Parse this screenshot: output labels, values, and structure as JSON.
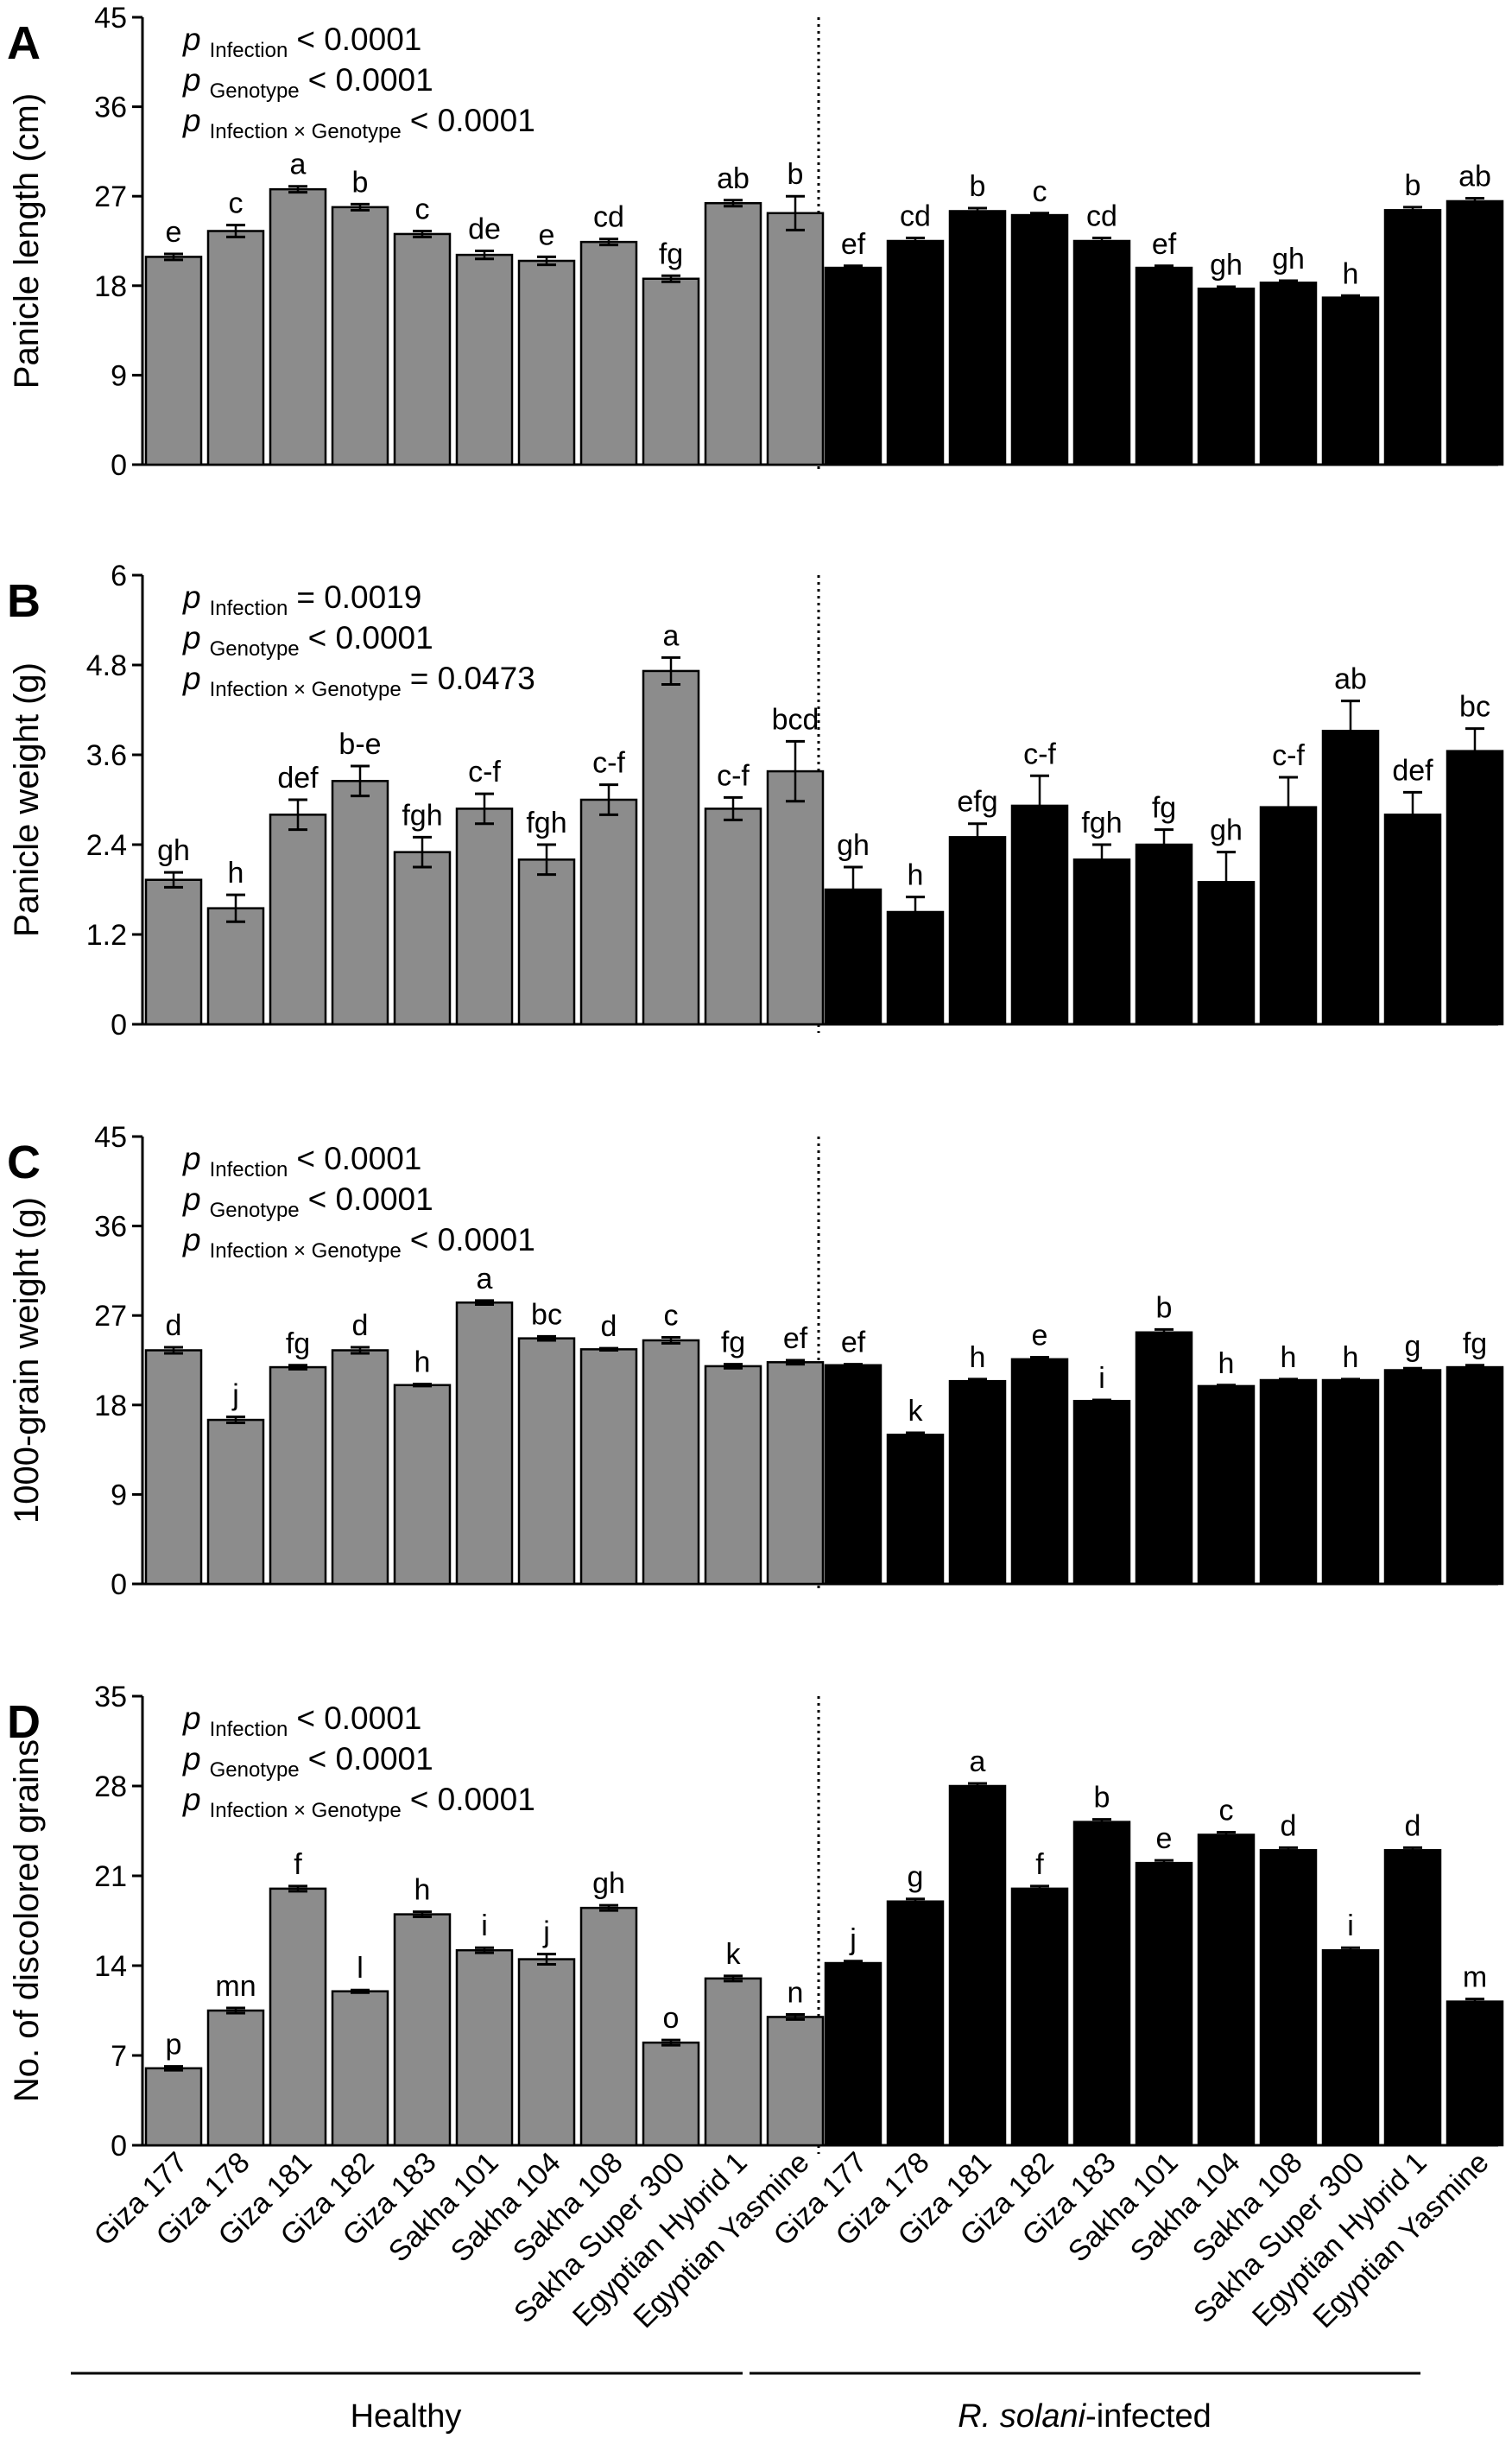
{
  "figure": {
    "categories": [
      "Giza 177",
      "Giza 178",
      "Giza 181",
      "Giza 182",
      "Giza 183",
      "Sakha 101",
      "Sakha 104",
      "Sakha 108",
      "Sakha Super 300",
      "Egyptian Hybrid 1",
      "Egyptian Yasmine"
    ],
    "group_labels": {
      "healthy": "Healthy",
      "infected_italic": "R. solani",
      "infected_suffix": "-infected"
    },
    "colors": {
      "healthy": "#8c8c8c",
      "infected": "#000000"
    }
  },
  "chart_data": [
    {
      "type": "bar",
      "panel": "A",
      "ylabel": "Panicle length (cm)",
      "ylim": [
        0,
        45
      ],
      "yticks": [
        0,
        9,
        18,
        27,
        36,
        45
      ],
      "stats": [
        {
          "p": "p",
          "sub": "Infection",
          "tail": "< 0.0001"
        },
        {
          "p": "p",
          "sub": "Genotype",
          "tail": "< 0.0001"
        },
        {
          "p": "p",
          "sub": "Infection × Genotype",
          "tail": "< 0.0001"
        }
      ],
      "series": [
        {
          "name": "Healthy",
          "values": [
            20.9,
            23.5,
            27.7,
            25.9,
            23.2,
            21.1,
            20.5,
            22.4,
            18.7,
            26.3,
            25.3
          ],
          "errors": [
            0.3,
            0.6,
            0.3,
            0.3,
            0.3,
            0.4,
            0.4,
            0.3,
            0.3,
            0.3,
            1.7
          ],
          "letters": [
            "e",
            "c",
            "a",
            "b",
            "c",
            "de",
            "e",
            "cd",
            "fg",
            "ab",
            "b"
          ]
        },
        {
          "name": "R. solani-infected",
          "values": [
            19.8,
            22.5,
            25.5,
            25.1,
            22.5,
            19.8,
            17.7,
            18.3,
            16.8,
            25.6,
            26.5
          ],
          "errors": [
            0.2,
            0.3,
            0.3,
            0.2,
            0.3,
            0.2,
            0.2,
            0.2,
            0.2,
            0.3,
            0.3
          ],
          "letters": [
            "ef",
            "cd",
            "b",
            "c",
            "cd",
            "ef",
            "gh",
            "gh",
            "h",
            "b",
            "ab"
          ]
        }
      ]
    },
    {
      "type": "bar",
      "panel": "B",
      "ylabel": "Panicle weight (g)",
      "ylim": [
        0,
        6
      ],
      "yticks": [
        0,
        1.2,
        2.4,
        3.6,
        4.8,
        6
      ],
      "stats": [
        {
          "p": "p",
          "sub": "Infection",
          "tail": "= 0.0019"
        },
        {
          "p": "p",
          "sub": "Genotype",
          "tail": "< 0.0001"
        },
        {
          "p": "p",
          "sub": "Infection × Genotype",
          "tail": "= 0.0473"
        }
      ],
      "series": [
        {
          "name": "Healthy",
          "values": [
            1.93,
            1.55,
            2.8,
            3.25,
            2.3,
            2.88,
            2.2,
            3.0,
            4.72,
            2.88,
            3.38
          ],
          "errors": [
            0.1,
            0.18,
            0.2,
            0.2,
            0.2,
            0.2,
            0.2,
            0.2,
            0.18,
            0.15,
            0.4
          ],
          "letters": [
            "gh",
            "h",
            "def",
            "b-e",
            "fgh",
            "c-f",
            "fgh",
            "c-f",
            "a",
            "c-f",
            "bcd"
          ]
        },
        {
          "name": "R. solani-infected",
          "values": [
            1.8,
            1.5,
            2.5,
            2.92,
            2.2,
            2.4,
            1.9,
            2.9,
            3.92,
            2.8,
            3.65
          ],
          "errors": [
            0.3,
            0.2,
            0.18,
            0.4,
            0.2,
            0.2,
            0.4,
            0.4,
            0.4,
            0.3,
            0.3
          ],
          "letters": [
            "gh",
            "h",
            "efg",
            "c-f",
            "fgh",
            "fg",
            "gh",
            "c-f",
            "ab",
            "def",
            "bc"
          ]
        }
      ]
    },
    {
      "type": "bar",
      "panel": "C",
      "ylabel": "1000-grain weight (g)",
      "ylim": [
        0,
        45
      ],
      "yticks": [
        0,
        9,
        18,
        27,
        36,
        45
      ],
      "stats": [
        {
          "p": "p",
          "sub": "Infection",
          "tail": "< 0.0001"
        },
        {
          "p": "p",
          "sub": "Genotype",
          "tail": "< 0.0001"
        },
        {
          "p": "p",
          "sub": "Infection × Genotype",
          "tail": "< 0.0001"
        }
      ],
      "series": [
        {
          "name": "Healthy",
          "values": [
            23.5,
            16.5,
            21.8,
            23.5,
            20.0,
            28.3,
            24.7,
            23.6,
            24.5,
            21.9,
            22.3
          ],
          "errors": [
            0.3,
            0.3,
            0.2,
            0.3,
            0.1,
            0.2,
            0.2,
            0.1,
            0.3,
            0.2,
            0.2
          ],
          "letters": [
            "d",
            "j",
            "fg",
            "d",
            "h",
            "a",
            "bc",
            "d",
            "c",
            "fg",
            "ef"
          ]
        },
        {
          "name": "R. solani-infected",
          "values": [
            22.0,
            15.0,
            20.4,
            22.6,
            18.4,
            25.3,
            19.9,
            20.5,
            20.5,
            21.5,
            21.8
          ],
          "errors": [
            0.1,
            0.2,
            0.2,
            0.2,
            0.1,
            0.3,
            0.1,
            0.1,
            0.1,
            0.2,
            0.2
          ],
          "letters": [
            "ef",
            "k",
            "h",
            "e",
            "i",
            "b",
            "h",
            "h",
            "h",
            "g",
            "fg"
          ]
        }
      ]
    },
    {
      "type": "bar",
      "panel": "D",
      "ylabel": "No. of discolored grains",
      "ylim": [
        0,
        35
      ],
      "yticks": [
        0,
        7,
        14,
        21,
        28,
        35
      ],
      "stats": [
        {
          "p": "p",
          "sub": "Infection",
          "tail": "< 0.0001"
        },
        {
          "p": "p",
          "sub": "Genotype",
          "tail": "< 0.0001"
        },
        {
          "p": "p",
          "sub": "Infection × Genotype",
          "tail": "< 0.0001"
        }
      ],
      "series": [
        {
          "name": "Healthy",
          "values": [
            6.0,
            10.5,
            20.0,
            12.0,
            18.0,
            15.2,
            14.5,
            18.5,
            8.0,
            13.0,
            10.0
          ],
          "errors": [
            0.15,
            0.2,
            0.2,
            0.1,
            0.2,
            0.2,
            0.4,
            0.2,
            0.2,
            0.2,
            0.2
          ],
          "letters": [
            "p",
            "mn",
            "f",
            "l",
            "h",
            "i",
            "j",
            "gh",
            "o",
            "k",
            "n"
          ]
        },
        {
          "name": "R. solani-infected",
          "values": [
            14.2,
            19.0,
            28.0,
            20.0,
            25.2,
            22.0,
            24.2,
            23.0,
            15.2,
            23.0,
            11.2
          ],
          "errors": [
            0.15,
            0.2,
            0.2,
            0.2,
            0.2,
            0.2,
            0.2,
            0.2,
            0.2,
            0.2,
            0.2
          ],
          "letters": [
            "j",
            "g",
            "a",
            "f",
            "b",
            "e",
            "c",
            "d",
            "i",
            "d",
            "m"
          ]
        }
      ]
    }
  ]
}
